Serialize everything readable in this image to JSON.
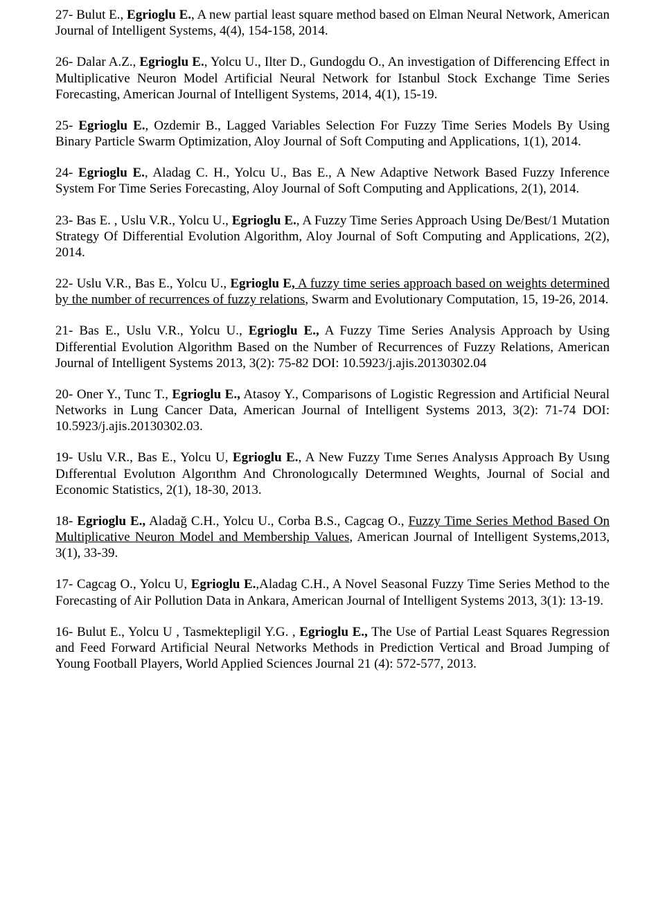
{
  "font": {
    "family": "Times New Roman",
    "size_pt": 14,
    "color": "#000000"
  },
  "background_color": "#ffffff",
  "entries": [
    {
      "num": "27",
      "authors_pre": "Bulut E., ",
      "bold_author": "Egrioglu E.",
      "rest": ", A new partial least square method based on Elman Neural Network, American Journal of Intelligent Systems, 4(4), 154-158, 2014."
    },
    {
      "num": "26",
      "authors_pre": "Dalar A.Z., ",
      "bold_author": "Egrioglu E.",
      "rest": ", Yolcu U., Ilter D., Gundogdu O., An investigation of Differencing Effect in Multiplicative Neuron Model Artificial Neural Network for Istanbul Stock Exchange Time Series Forecasting, American Journal of Intelligent Systems, 2014, 4(1), 15-19."
    },
    {
      "num": "25",
      "authors_pre": "",
      "bold_author": "Egrioglu E.",
      "rest": ", Ozdemir B., Lagged Variables Selection For Fuzzy Time Series Models By Using Binary Particle Swarm Optimization, Aloy Journal of Soft Computing and Applications, 1(1), 2014."
    },
    {
      "num": "24",
      "authors_pre": "",
      "bold_author": "Egrioglu E.",
      "rest": ", Aladag C. H., Yolcu U., Bas E., A New Adaptive Network Based Fuzzy Inference System For Time Series Forecasting, Aloy Journal of Soft Computing and Applications, 2(1), 2014."
    },
    {
      "num": "23",
      "authors_pre": "Bas E. , Uslu V.R., Yolcu U., ",
      "bold_author": "Egrioglu E.",
      "rest": ", A Fuzzy Time Series Approach Using De/Best/1 Mutation Strategy Of Differential Evolution Algorithm, Aloy Journal of Soft Computing and Applications, 2(2), 2014."
    },
    {
      "num": "22",
      "authors_pre": "Uslu V.R., Bas E., Yolcu U., ",
      "bold_author": "Egrioglu E,",
      "underline_title": " A fuzzy time series approach based on weights determined by the number of recurrences of fuzzy relations",
      "rest": ", Swarm and Evolutionary Computation, 15, 19-26, 2014."
    },
    {
      "num": "21",
      "authors_pre": "Bas E., Uslu V.R., Yolcu U., ",
      "bold_author": "Egrioglu E.,",
      "rest": "  A Fuzzy Time Series Analysis Approach by Using Differential Evolution Algorithm Based on the Number of Recurrences of Fuzzy Relations, American Journal of Intelligent Systems 2013, 3(2): 75-82 DOI: 10.5923/j.ajis.20130302.04"
    },
    {
      "num": "20",
      "authors_pre": "Oner Y., Tunc T., ",
      "bold_author": "Egrioglu E.,",
      "rest": " Atasoy Y., Comparisons of Logistic Regression and Artificial Neural Networks in Lung Cancer Data, American Journal of Intelligent Systems 2013, 3(2): 71-74 DOI: 10.5923/j.ajis.20130302.03."
    },
    {
      "num": "19",
      "authors_pre": "Uslu V.R., Bas E., Yolcu U, ",
      "bold_author": "Egrioglu E.",
      "rest": ", A New Fuzzy Tıme Serıes Analysıs Approach By Usıng Dıfferentıal Evolutıon Algorıthm And Chronologıcally Determıned  Weıghts, Journal of Social and Economic Statistics, 2(1), 18-30,  2013."
    },
    {
      "num": "18",
      "authors_pre": "",
      "bold_author": "Egrioglu E.,",
      "mid": " Aladağ C.H., Yolcu U., Corba B.S., Cagcag O., ",
      "underline_title": "Fuzzy Time Series Method Based On Multiplicative Neuron Model and Membership Values",
      "rest": ", American Journal of Intelligent Systems,2013, 3(1), 33-39."
    },
    {
      "num": "17",
      "authors_pre": "Cagcag O., Yolcu U, ",
      "bold_author": "Egrioglu E.",
      "rest": ",Aladag C.H., A Novel Seasonal Fuzzy Time Series Method to the Forecasting of Air Pollution Data in Ankara, American Journal of Intelligent Systems 2013, 3(1): 13-19."
    },
    {
      "num": "16",
      "authors_pre": "Bulut E., Yolcu U , Tasmektepligil Y.G. , ",
      "bold_author": "Egrioglu E.,",
      "rest": " The Use of Partial Least Squares Regression and Feed Forward Artificial Neural Networks Methods in Prediction Vertical and Broad Jumping of Young Football Players, World Applied Sciences Journal 21 (4): 572-577, 2013."
    }
  ]
}
